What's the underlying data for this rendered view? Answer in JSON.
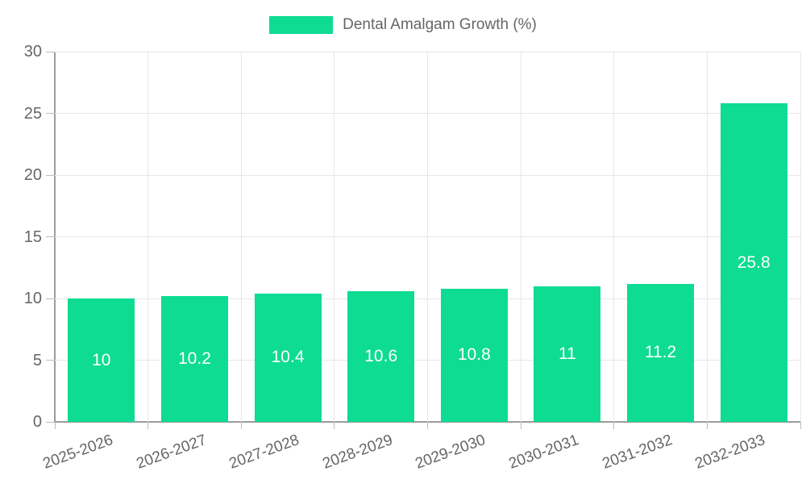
{
  "legend": {
    "label": "Dental Amalgam Growth (%)"
  },
  "colors": {
    "bar": "#0ddc92",
    "grid": "#e7e7e7",
    "axis": "#9b9b9b",
    "tick": "#bdbdbd",
    "tick_label": "#666666",
    "bar_label": "#ffffff",
    "legend_label": "#666666"
  },
  "chart_data": {
    "type": "bar",
    "title": "",
    "series_name": "Dental Amalgam Growth (%)",
    "categories": [
      "2025-2026",
      "2026-2027",
      "2027-2028",
      "2028-2029",
      "2029-2030",
      "2030-2031",
      "2031-2032",
      "2032-2033"
    ],
    "values": [
      10,
      10.2,
      10.4,
      10.6,
      10.8,
      11,
      11.2,
      25.8
    ],
    "bar_labels": [
      "10",
      "10.2",
      "10.4",
      "10.6",
      "10.8",
      "11",
      "11.2",
      "25.8"
    ],
    "xlabel": "",
    "ylabel": "",
    "ylim": [
      0,
      30
    ],
    "ytick_step": 5,
    "ytick_labels": [
      "0",
      "5",
      "10",
      "15",
      "20",
      "25",
      "30"
    ],
    "grid": true,
    "legend_position": "top",
    "x_label_rotation_deg": -20
  }
}
